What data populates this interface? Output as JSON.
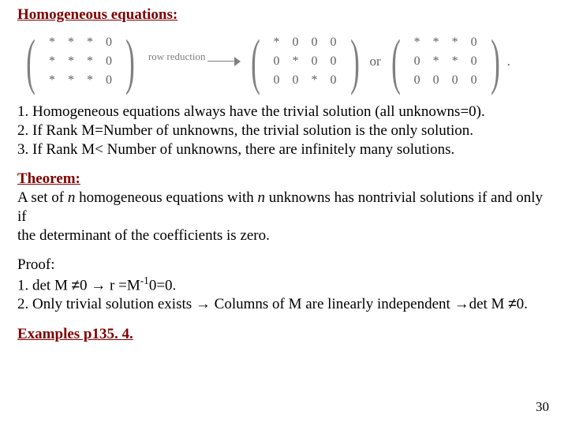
{
  "title": "Homogeneous equations:",
  "matrices": {
    "row_reduction_label": "row reduction",
    "or_label": "or",
    "period": ".",
    "m1": [
      [
        "*",
        "*",
        "*",
        "0"
      ],
      [
        "*",
        "*",
        "*",
        "0"
      ],
      [
        "*",
        "*",
        "*",
        "0"
      ]
    ],
    "m2": [
      [
        "*",
        "0",
        "0",
        "0"
      ],
      [
        "0",
        "*",
        "0",
        "0"
      ],
      [
        "0",
        "0",
        "*",
        "0"
      ]
    ],
    "m3": [
      [
        "*",
        "*",
        "*",
        "0"
      ],
      [
        "0",
        "*",
        "*",
        "0"
      ],
      [
        "0",
        "0",
        "0",
        "0"
      ]
    ]
  },
  "list": {
    "l1": "1. Homogeneous equations always have the trivial solution (all unknowns=0).",
    "l2": "2. If Rank M=Number of unknowns, the trivial solution is the only solution.",
    "l3": "3. If Rank M< Number of unknowns, there are infinitely many solutions."
  },
  "theorem": {
    "heading": "Theorem:",
    "line1a": "A set of ",
    "n1": "n",
    "line1b": " homogeneous equations with ",
    "n2": "n",
    "line1c": " unknowns has nontrivial solutions if and only if",
    "line2": "the determinant of the coefficients is zero."
  },
  "proof": {
    "heading": "Proof:",
    "p1a": "1. det M ",
    "neq1": "≠",
    "p1b": "0 ",
    "imp1": "→",
    "p1c": " r =M",
    "sup": "-1",
    "p1d": "0=0.",
    "p2a": "2. Only trivial solution exists ",
    "imp2": "→",
    "p2b": " Columns of M are linearly independent ",
    "imp3": "→",
    "p2c": "det M ",
    "neq2": "≠",
    "p2d": "0."
  },
  "examples": "Examples  p135. 4.",
  "pagenum": "30",
  "colors": {
    "maroon": "#800000",
    "matrix_gray": "#808080",
    "text": "#000000",
    "background": "#ffffff"
  },
  "fontsizes": {
    "title": 19,
    "body": 19,
    "matrix": 16,
    "rowreduction": 13,
    "pagenum": 17
  }
}
